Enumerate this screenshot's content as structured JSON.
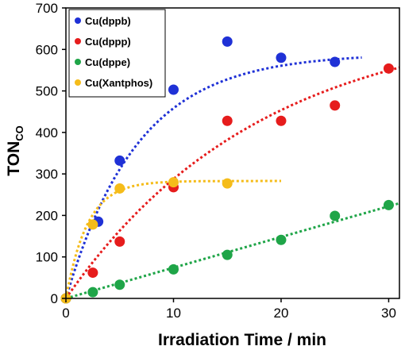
{
  "chart_data": {
    "type": "scatter",
    "xlabel": "Irradiation Time / min",
    "ylabel": "TON",
    "ylabel_sub": "CO",
    "xlim": [
      0,
      31
    ],
    "ylim": [
      0,
      700
    ],
    "xticks": [
      0,
      10,
      20,
      30
    ],
    "yticks": [
      0,
      100,
      200,
      300,
      400,
      500,
      600,
      700
    ],
    "grid": false,
    "legend_position": "top-left",
    "series": [
      {
        "name": "Cu(dppb)",
        "color": "#1f31d6",
        "x": [
          0,
          3,
          5,
          10,
          15,
          20,
          25
        ],
        "y": [
          0,
          185,
          332,
          503,
          619,
          580,
          570
        ],
        "fit": {
          "model": "exponential",
          "plateau": 590,
          "rate": 0.15,
          "x_range": [
            0,
            27.5
          ]
        }
      },
      {
        "name": "Cu(dppp)",
        "color": "#e61c1c",
        "x": [
          0,
          2.5,
          5,
          10,
          15,
          20,
          25,
          30
        ],
        "y": [
          0,
          62,
          137,
          268,
          428,
          428,
          465,
          554
        ],
        "fit": {
          "model": "exponential",
          "plateau": 680,
          "rate": 0.055,
          "x_range": [
            0,
            31
          ]
        }
      },
      {
        "name": "Cu(dppe)",
        "color": "#1fa548",
        "x": [
          0,
          2.5,
          5,
          10,
          15,
          20,
          25,
          30
        ],
        "y": [
          0,
          15,
          33,
          70,
          105,
          141,
          199,
          225
        ],
        "fit": {
          "model": "linear",
          "slope": 7.4,
          "x_range": [
            0,
            31
          ]
        }
      },
      {
        "name": "Cu(Xantphos)",
        "color": "#f5bc1a",
        "x": [
          0,
          2.5,
          5,
          10,
          15
        ],
        "y": [
          0,
          178,
          265,
          280,
          277
        ],
        "fit": {
          "model": "exponential",
          "plateau": 283,
          "rate": 0.5,
          "x_range": [
            0,
            20
          ]
        }
      }
    ]
  }
}
